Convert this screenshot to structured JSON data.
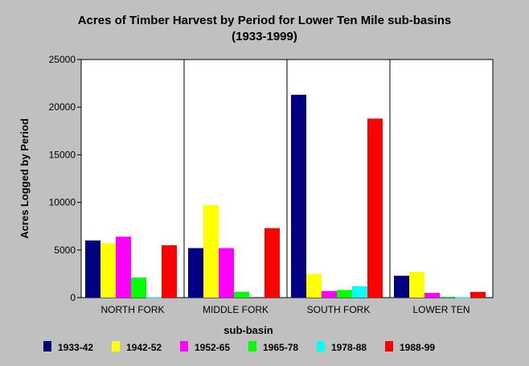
{
  "chart_data": {
    "type": "bar",
    "title": "Acres of Timber Harvest by Period for Lower Ten Mile sub-basins",
    "subtitle": "(1933-1999)",
    "xlabel": "sub-basin",
    "ylabel": "Acres Logged by Period",
    "ylim": [
      0,
      25000
    ],
    "yticks": [
      "0",
      "5000",
      "10000",
      "15000",
      "20000",
      "25000"
    ],
    "categories": [
      "NORTH FORK",
      "MIDDLE FORK",
      "SOUTH FORK",
      "LOWER TEN"
    ],
    "series": [
      {
        "name": "1933-42",
        "color": "#000080",
        "values": [
          6000,
          5200,
          21300,
          2300
        ]
      },
      {
        "name": "1942-52",
        "color": "#ffff00",
        "values": [
          5700,
          9700,
          2500,
          2700
        ]
      },
      {
        "name": "1952-65",
        "color": "#ff00ff",
        "values": [
          6400,
          5200,
          700,
          500
        ]
      },
      {
        "name": "1965-78",
        "color": "#00ff00",
        "values": [
          2100,
          600,
          800,
          80
        ]
      },
      {
        "name": "1978-88",
        "color": "#00ffff",
        "values": [
          50,
          0,
          1200,
          50
        ]
      },
      {
        "name": "1988-99",
        "color": "#ff0000",
        "values": [
          5500,
          7300,
          18800,
          600
        ]
      }
    ],
    "grid": "vertical category dividers",
    "legend_position": "bottom"
  }
}
